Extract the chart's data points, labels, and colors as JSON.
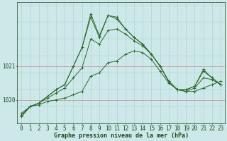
{
  "xlabel": "Graphe pression niveau de la mer (hPa)",
  "hours": [
    0,
    1,
    2,
    3,
    4,
    5,
    6,
    7,
    8,
    9,
    10,
    11,
    12,
    13,
    14,
    15,
    16,
    17,
    18,
    19,
    20,
    21,
    22,
    23
  ],
  "series1": [
    1019.6,
    1019.8,
    1019.85,
    1019.95,
    1020.0,
    1020.05,
    1020.15,
    1020.25,
    1020.7,
    1020.8,
    1021.1,
    1021.15,
    1021.35,
    1021.45,
    1021.4,
    1021.2,
    1020.85,
    1020.5,
    1020.3,
    1020.25,
    1020.25,
    1020.35,
    1020.45,
    1020.55
  ],
  "series2": [
    1019.55,
    1019.8,
    1019.9,
    1020.05,
    1020.2,
    1020.35,
    1020.65,
    1020.95,
    1021.8,
    1021.65,
    1022.05,
    1022.1,
    1021.95,
    1021.75,
    1021.6,
    1021.35,
    1021.0,
    1020.55,
    1020.3,
    1020.25,
    1020.35,
    1020.65,
    1020.6,
    1020.45
  ],
  "series3": [
    1019.5,
    1019.8,
    1019.9,
    1020.1,
    1020.3,
    1020.45,
    1021.0,
    1021.55,
    1022.45,
    1021.85,
    1022.5,
    1022.4,
    1022.1,
    1021.85,
    1021.65,
    1021.35,
    1021.0,
    1020.55,
    1020.3,
    1020.3,
    1020.4,
    1020.85,
    1020.65,
    1020.45
  ],
  "series4": [
    1019.5,
    1019.8,
    1019.9,
    1020.1,
    1020.3,
    1020.45,
    1021.0,
    1021.55,
    1022.55,
    1021.9,
    1022.5,
    1022.45,
    1022.1,
    1021.85,
    1021.65,
    1021.35,
    1021.0,
    1020.55,
    1020.3,
    1020.3,
    1020.4,
    1020.9,
    1020.65,
    1020.45
  ],
  "line_color": "#2d6a2d",
  "bg_color": "#cce8e8",
  "grid_color_v": "#aacece",
  "grid_color_h": "#aacece",
  "hline_color": "#cc8888",
  "axis_color": "#1a4a1a",
  "yticks": [
    1020,
    1021
  ],
  "ylim_min": 1019.3,
  "ylim_max": 1022.9,
  "xlabel_fontsize": 6.0,
  "tick_fontsize": 5.5,
  "figwidth": 3.2,
  "figheight": 2.0,
  "dpi": 100
}
